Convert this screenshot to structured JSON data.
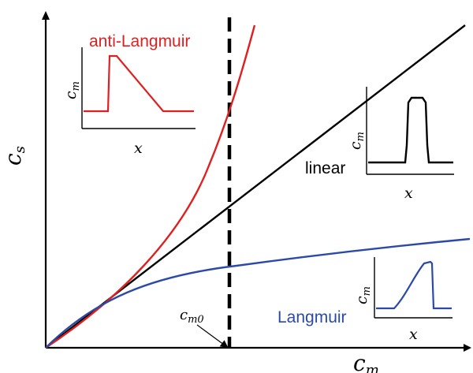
{
  "axes": {
    "x_label_main": "c",
    "x_label_sub": "m",
    "y_label_main": "c",
    "y_label_sub": "s"
  },
  "marker": {
    "label_main": "c",
    "label_sub": "m0"
  },
  "curves": {
    "anti_langmuir": {
      "label": "anti-Langmuir",
      "color": "#e02020"
    },
    "linear": {
      "label": "linear",
      "color": "#000000"
    },
    "langmuir": {
      "label": "Langmuir",
      "color": "#2b4aa8"
    }
  },
  "insets": {
    "y_label_main": "c",
    "y_label_sub": "m",
    "x_label": "x"
  }
}
